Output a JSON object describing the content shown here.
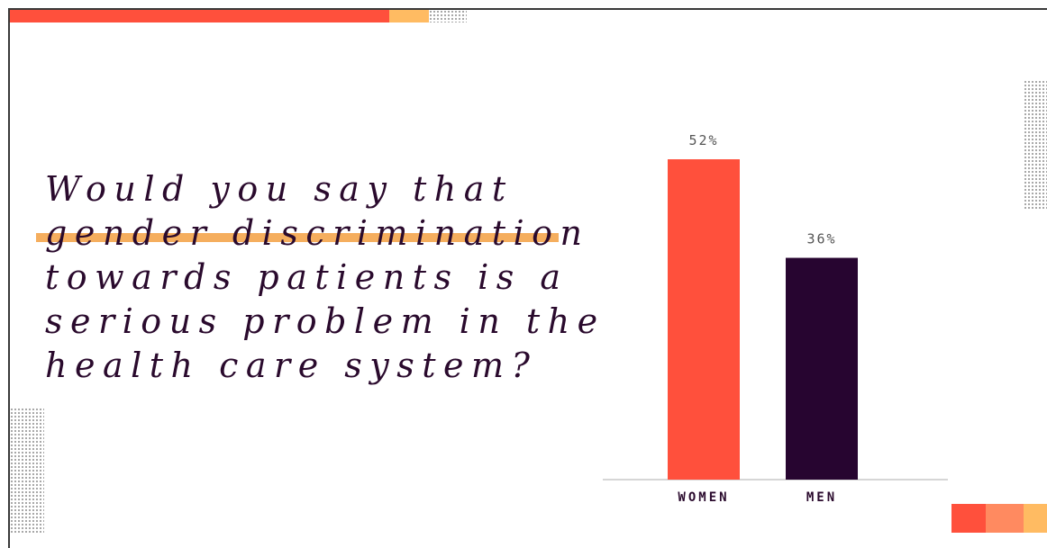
{
  "question": {
    "lines": [
      "Would you say that",
      "gender discrimination",
      "towards patients is a",
      "serious problem in the",
      "health care system?"
    ]
  },
  "colors": {
    "women": "#ff503c",
    "men": "#270530",
    "highlight": "#f5ae5e",
    "text": "#2a0a2d",
    "accent_light": "#ff8a60",
    "accent_yellow": "#ffbb62"
  },
  "chart_data": {
    "type": "bar",
    "categories": [
      "WOMEN",
      "MEN"
    ],
    "values": [
      52,
      36
    ],
    "value_labels": [
      "52%",
      "36%"
    ],
    "ylim": [
      0,
      60
    ],
    "grid": false
  }
}
